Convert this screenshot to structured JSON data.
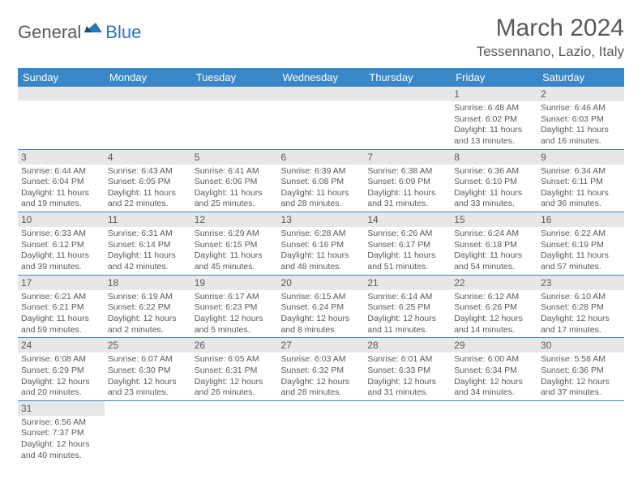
{
  "logo": {
    "text1": "General",
    "text2": "Blue"
  },
  "title": "March 2024",
  "location": "Tessennano, Lazio, Italy",
  "colors": {
    "header_bg": "#3a87c7",
    "header_fg": "#ffffff",
    "daynum_bg": "#e6e7e8",
    "text": "#58595b",
    "rule": "#3a87c7",
    "logo_blue": "#2e75b6"
  },
  "day_headers": [
    "Sunday",
    "Monday",
    "Tuesday",
    "Wednesday",
    "Thursday",
    "Friday",
    "Saturday"
  ],
  "weeks": [
    [
      {
        "n": "",
        "lines": []
      },
      {
        "n": "",
        "lines": []
      },
      {
        "n": "",
        "lines": []
      },
      {
        "n": "",
        "lines": []
      },
      {
        "n": "",
        "lines": []
      },
      {
        "n": "1",
        "lines": [
          "Sunrise: 6:48 AM",
          "Sunset: 6:02 PM",
          "Daylight: 11 hours",
          "and 13 minutes."
        ]
      },
      {
        "n": "2",
        "lines": [
          "Sunrise: 6:46 AM",
          "Sunset: 6:03 PM",
          "Daylight: 11 hours",
          "and 16 minutes."
        ]
      }
    ],
    [
      {
        "n": "3",
        "lines": [
          "Sunrise: 6:44 AM",
          "Sunset: 6:04 PM",
          "Daylight: 11 hours",
          "and 19 minutes."
        ]
      },
      {
        "n": "4",
        "lines": [
          "Sunrise: 6:43 AM",
          "Sunset: 6:05 PM",
          "Daylight: 11 hours",
          "and 22 minutes."
        ]
      },
      {
        "n": "5",
        "lines": [
          "Sunrise: 6:41 AM",
          "Sunset: 6:06 PM",
          "Daylight: 11 hours",
          "and 25 minutes."
        ]
      },
      {
        "n": "6",
        "lines": [
          "Sunrise: 6:39 AM",
          "Sunset: 6:08 PM",
          "Daylight: 11 hours",
          "and 28 minutes."
        ]
      },
      {
        "n": "7",
        "lines": [
          "Sunrise: 6:38 AM",
          "Sunset: 6:09 PM",
          "Daylight: 11 hours",
          "and 31 minutes."
        ]
      },
      {
        "n": "8",
        "lines": [
          "Sunrise: 6:36 AM",
          "Sunset: 6:10 PM",
          "Daylight: 11 hours",
          "and 33 minutes."
        ]
      },
      {
        "n": "9",
        "lines": [
          "Sunrise: 6:34 AM",
          "Sunset: 6:11 PM",
          "Daylight: 11 hours",
          "and 36 minutes."
        ]
      }
    ],
    [
      {
        "n": "10",
        "lines": [
          "Sunrise: 6:33 AM",
          "Sunset: 6:12 PM",
          "Daylight: 11 hours",
          "and 39 minutes."
        ]
      },
      {
        "n": "11",
        "lines": [
          "Sunrise: 6:31 AM",
          "Sunset: 6:14 PM",
          "Daylight: 11 hours",
          "and 42 minutes."
        ]
      },
      {
        "n": "12",
        "lines": [
          "Sunrise: 6:29 AM",
          "Sunset: 6:15 PM",
          "Daylight: 11 hours",
          "and 45 minutes."
        ]
      },
      {
        "n": "13",
        "lines": [
          "Sunrise: 6:28 AM",
          "Sunset: 6:16 PM",
          "Daylight: 11 hours",
          "and 48 minutes."
        ]
      },
      {
        "n": "14",
        "lines": [
          "Sunrise: 6:26 AM",
          "Sunset: 6:17 PM",
          "Daylight: 11 hours",
          "and 51 minutes."
        ]
      },
      {
        "n": "15",
        "lines": [
          "Sunrise: 6:24 AM",
          "Sunset: 6:18 PM",
          "Daylight: 11 hours",
          "and 54 minutes."
        ]
      },
      {
        "n": "16",
        "lines": [
          "Sunrise: 6:22 AM",
          "Sunset: 6:19 PM",
          "Daylight: 11 hours",
          "and 57 minutes."
        ]
      }
    ],
    [
      {
        "n": "17",
        "lines": [
          "Sunrise: 6:21 AM",
          "Sunset: 6:21 PM",
          "Daylight: 11 hours",
          "and 59 minutes."
        ]
      },
      {
        "n": "18",
        "lines": [
          "Sunrise: 6:19 AM",
          "Sunset: 6:22 PM",
          "Daylight: 12 hours",
          "and 2 minutes."
        ]
      },
      {
        "n": "19",
        "lines": [
          "Sunrise: 6:17 AM",
          "Sunset: 6:23 PM",
          "Daylight: 12 hours",
          "and 5 minutes."
        ]
      },
      {
        "n": "20",
        "lines": [
          "Sunrise: 6:15 AM",
          "Sunset: 6:24 PM",
          "Daylight: 12 hours",
          "and 8 minutes."
        ]
      },
      {
        "n": "21",
        "lines": [
          "Sunrise: 6:14 AM",
          "Sunset: 6:25 PM",
          "Daylight: 12 hours",
          "and 11 minutes."
        ]
      },
      {
        "n": "22",
        "lines": [
          "Sunrise: 6:12 AM",
          "Sunset: 6:26 PM",
          "Daylight: 12 hours",
          "and 14 minutes."
        ]
      },
      {
        "n": "23",
        "lines": [
          "Sunrise: 6:10 AM",
          "Sunset: 6:28 PM",
          "Daylight: 12 hours",
          "and 17 minutes."
        ]
      }
    ],
    [
      {
        "n": "24",
        "lines": [
          "Sunrise: 6:08 AM",
          "Sunset: 6:29 PM",
          "Daylight: 12 hours",
          "and 20 minutes."
        ]
      },
      {
        "n": "25",
        "lines": [
          "Sunrise: 6:07 AM",
          "Sunset: 6:30 PM",
          "Daylight: 12 hours",
          "and 23 minutes."
        ]
      },
      {
        "n": "26",
        "lines": [
          "Sunrise: 6:05 AM",
          "Sunset: 6:31 PM",
          "Daylight: 12 hours",
          "and 26 minutes."
        ]
      },
      {
        "n": "27",
        "lines": [
          "Sunrise: 6:03 AM",
          "Sunset: 6:32 PM",
          "Daylight: 12 hours",
          "and 28 minutes."
        ]
      },
      {
        "n": "28",
        "lines": [
          "Sunrise: 6:01 AM",
          "Sunset: 6:33 PM",
          "Daylight: 12 hours",
          "and 31 minutes."
        ]
      },
      {
        "n": "29",
        "lines": [
          "Sunrise: 6:00 AM",
          "Sunset: 6:34 PM",
          "Daylight: 12 hours",
          "and 34 minutes."
        ]
      },
      {
        "n": "30",
        "lines": [
          "Sunrise: 5:58 AM",
          "Sunset: 6:36 PM",
          "Daylight: 12 hours",
          "and 37 minutes."
        ]
      }
    ],
    [
      {
        "n": "31",
        "lines": [
          "Sunrise: 6:56 AM",
          "Sunset: 7:37 PM",
          "Daylight: 12 hours",
          "and 40 minutes."
        ]
      },
      {
        "n": "",
        "lines": []
      },
      {
        "n": "",
        "lines": []
      },
      {
        "n": "",
        "lines": []
      },
      {
        "n": "",
        "lines": []
      },
      {
        "n": "",
        "lines": []
      },
      {
        "n": "",
        "lines": []
      }
    ]
  ]
}
